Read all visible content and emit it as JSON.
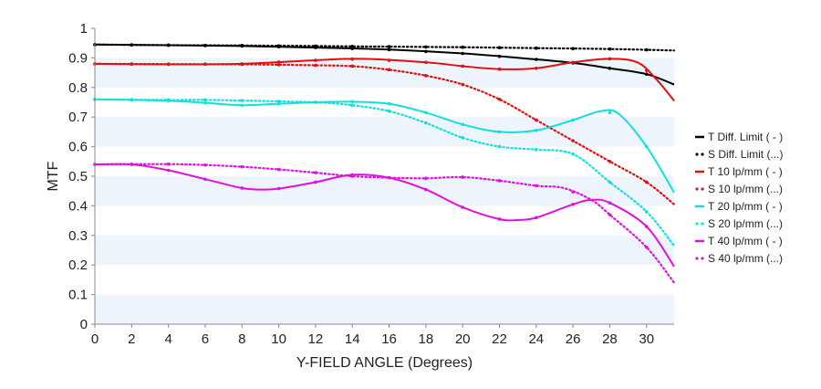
{
  "chart_data": {
    "type": "line",
    "title": "",
    "xlabel": "Y-FIELD ANGLE (Degrees)",
    "ylabel": "MTF",
    "xlim": [
      0,
      31.5
    ],
    "ylim": [
      0,
      1
    ],
    "x_ticks": [
      "0",
      "2",
      "4",
      "6",
      "8",
      "10",
      "12",
      "14",
      "16",
      "18",
      "20",
      "22",
      "24",
      "26",
      "28",
      "30"
    ],
    "y_ticks": [
      "0",
      "0.1",
      "0.2",
      "0.3",
      "0.4",
      "0.5",
      "0.6",
      "0.7",
      "0.8",
      "0.9",
      "1"
    ],
    "grid": "alternating horizontal bands",
    "legend_position": "right",
    "series": [
      {
        "name": "T Diff. Limit ( - )",
        "color": "#000000",
        "dash": "solid",
        "points": [
          [
            0,
            0.945
          ],
          [
            4,
            0.943
          ],
          [
            8,
            0.94
          ],
          [
            12,
            0.935
          ],
          [
            16,
            0.928
          ],
          [
            20,
            0.915
          ],
          [
            24,
            0.895
          ],
          [
            26,
            0.883
          ],
          [
            28,
            0.865
          ],
          [
            30,
            0.845
          ],
          [
            31.5,
            0.81
          ]
        ]
      },
      {
        "name": "S Diff. Limit (...)",
        "color": "#000000",
        "dash": "dotted",
        "points": [
          [
            0,
            0.945
          ],
          [
            4,
            0.943
          ],
          [
            8,
            0.942
          ],
          [
            12,
            0.94
          ],
          [
            16,
            0.938
          ],
          [
            20,
            0.936
          ],
          [
            24,
            0.933
          ],
          [
            28,
            0.93
          ],
          [
            31.5,
            0.925
          ]
        ]
      },
      {
        "name": "T 10 lp/mm ( - )",
        "color": "#e01010",
        "dash": "solid",
        "points": [
          [
            0,
            0.88
          ],
          [
            4,
            0.878
          ],
          [
            8,
            0.88
          ],
          [
            12,
            0.892
          ],
          [
            14.5,
            0.897
          ],
          [
            18,
            0.885
          ],
          [
            20,
            0.872
          ],
          [
            22,
            0.862
          ],
          [
            24,
            0.865
          ],
          [
            26,
            0.885
          ],
          [
            28,
            0.897
          ],
          [
            29.5,
            0.885
          ],
          [
            30.5,
            0.83
          ],
          [
            31.5,
            0.755
          ]
        ]
      },
      {
        "name": "S 10 lp/mm (...)",
        "color": "#e01010",
        "dash": "dotted",
        "points": [
          [
            0,
            0.88
          ],
          [
            4,
            0.879
          ],
          [
            8,
            0.878
          ],
          [
            12,
            0.875
          ],
          [
            14,
            0.872
          ],
          [
            16,
            0.86
          ],
          [
            18,
            0.84
          ],
          [
            20,
            0.81
          ],
          [
            22,
            0.76
          ],
          [
            24,
            0.69
          ],
          [
            26,
            0.62
          ],
          [
            28,
            0.55
          ],
          [
            30,
            0.48
          ],
          [
            31.5,
            0.405
          ]
        ]
      },
      {
        "name": "T 20 lp/mm ( - )",
        "color": "#10e0e0",
        "dash": "solid",
        "points": [
          [
            0,
            0.76
          ],
          [
            4,
            0.755
          ],
          [
            6,
            0.748
          ],
          [
            8,
            0.74
          ],
          [
            10,
            0.745
          ],
          [
            12,
            0.75
          ],
          [
            14,
            0.752
          ],
          [
            16,
            0.745
          ],
          [
            18,
            0.715
          ],
          [
            20,
            0.675
          ],
          [
            22,
            0.65
          ],
          [
            24,
            0.655
          ],
          [
            26,
            0.69
          ],
          [
            27.5,
            0.72
          ],
          [
            28.5,
            0.71
          ],
          [
            30,
            0.6
          ],
          [
            31.5,
            0.445
          ]
        ]
      },
      {
        "name": "S 20 lp/mm (...)",
        "color": "#10e0e0",
        "dash": "dotted",
        "points": [
          [
            0,
            0.76
          ],
          [
            4,
            0.758
          ],
          [
            6,
            0.758
          ],
          [
            8,
            0.756
          ],
          [
            10,
            0.753
          ],
          [
            12,
            0.75
          ],
          [
            14,
            0.74
          ],
          [
            16,
            0.72
          ],
          [
            18,
            0.68
          ],
          [
            20,
            0.63
          ],
          [
            22,
            0.6
          ],
          [
            24,
            0.59
          ],
          [
            26,
            0.575
          ],
          [
            28,
            0.48
          ],
          [
            30,
            0.38
          ],
          [
            31.5,
            0.265
          ]
        ]
      },
      {
        "name": "T 40 lp/mm ( - )",
        "color": "#e010e0",
        "dash": "solid",
        "points": [
          [
            0,
            0.54
          ],
          [
            2,
            0.54
          ],
          [
            4,
            0.52
          ],
          [
            6,
            0.49
          ],
          [
            8,
            0.46
          ],
          [
            9,
            0.455
          ],
          [
            10,
            0.458
          ],
          [
            12,
            0.48
          ],
          [
            14,
            0.505
          ],
          [
            16,
            0.495
          ],
          [
            18,
            0.455
          ],
          [
            20,
            0.395
          ],
          [
            22,
            0.355
          ],
          [
            23,
            0.352
          ],
          [
            24,
            0.36
          ],
          [
            26,
            0.405
          ],
          [
            27,
            0.42
          ],
          [
            28,
            0.41
          ],
          [
            30,
            0.33
          ],
          [
            31.5,
            0.195
          ]
        ]
      },
      {
        "name": "S 40 lp/mm (...)",
        "color": "#e010e0",
        "dash": "dotted",
        "points": [
          [
            0,
            0.54
          ],
          [
            4,
            0.541
          ],
          [
            6,
            0.538
          ],
          [
            8,
            0.532
          ],
          [
            10,
            0.523
          ],
          [
            12,
            0.512
          ],
          [
            14,
            0.5
          ],
          [
            16,
            0.495
          ],
          [
            18,
            0.493
          ],
          [
            20,
            0.497
          ],
          [
            22,
            0.485
          ],
          [
            24,
            0.468
          ],
          [
            25.5,
            0.46
          ],
          [
            27,
            0.42
          ],
          [
            28,
            0.37
          ],
          [
            30,
            0.26
          ],
          [
            31.5,
            0.14
          ]
        ]
      }
    ]
  }
}
